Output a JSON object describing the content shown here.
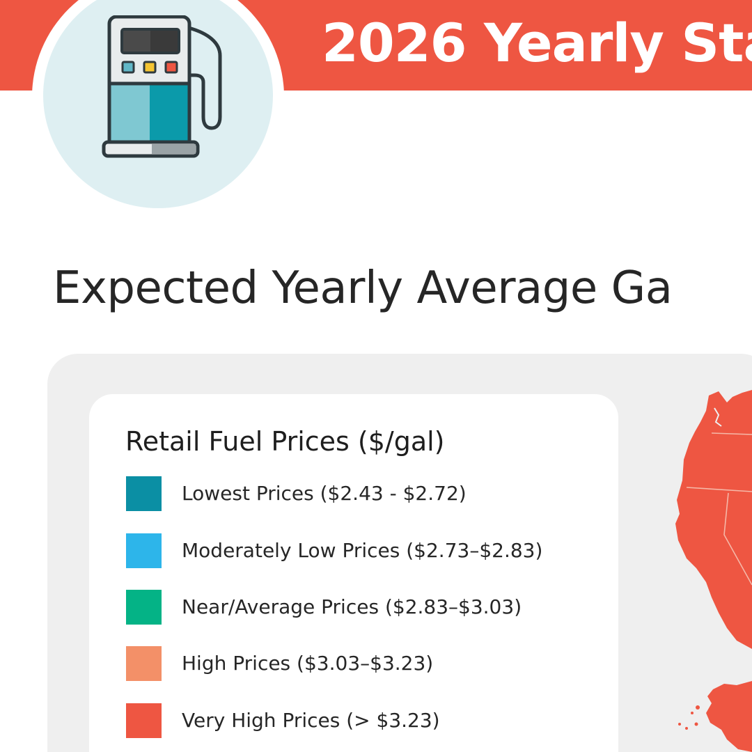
{
  "header": {
    "title": "2026 Yearly Sta"
  },
  "heading": "Expected Yearly Average Ga",
  "legend": {
    "title": "Retail Fuel Prices ($/gal)",
    "items": [
      {
        "label": "Lowest Prices ($2.43 - $2.72)",
        "color": "#0b8fa4"
      },
      {
        "label": "Moderately Low Prices ($2.73–$2.83)",
        "color": "#2db5ea"
      },
      {
        "label": "Near/Average Prices ($2.83–$3.03)",
        "color": "#04b386"
      },
      {
        "label": "High Prices ($3.03–$3.23)",
        "color": "#f39068"
      },
      {
        "label": "Very High Prices (> $3.23)",
        "color": "#ee5642"
      }
    ]
  },
  "colors": {
    "banner": "#ee5642",
    "badge": "#deeff2",
    "panel": "#efefef",
    "map_fill": "#ee5642"
  },
  "icons": {
    "badge": "gas-pump-icon"
  }
}
